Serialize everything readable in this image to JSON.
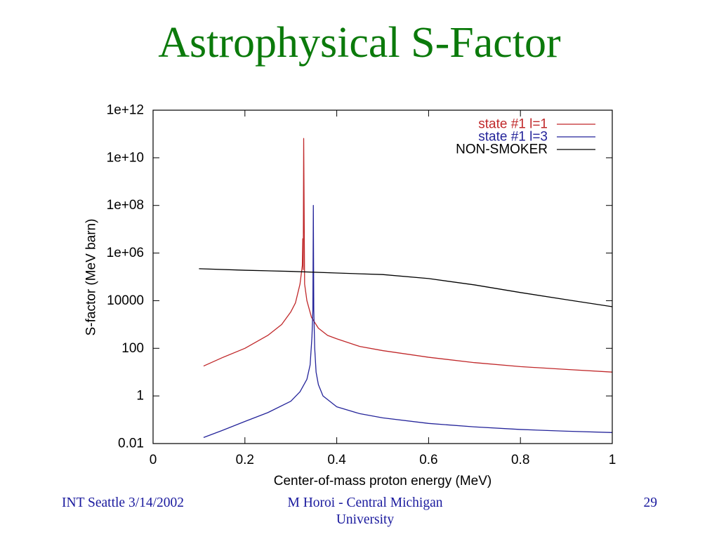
{
  "slide": {
    "title": "Astrophysical S-Factor",
    "title_color": "#0b7a0b",
    "footer": {
      "left": "INT Seattle 3/14/2002",
      "center_lines": [
        "M Horoi - Central Michigan",
        "University"
      ],
      "page_number": "29",
      "color": "#1a1a9e"
    }
  },
  "chart_data": {
    "type": "line",
    "xlabel": "Center-of-mass proton energy (MeV)",
    "ylabel": "S-factor (MeV barn)",
    "xlim": [
      0,
      1
    ],
    "ylim": [
      0.01,
      1000000000000.0
    ],
    "yscale": "log",
    "grid": false,
    "legend_position": "top-right",
    "x_ticks": [
      {
        "value": 0,
        "label": "0"
      },
      {
        "value": 0.2,
        "label": "0.2"
      },
      {
        "value": 0.4,
        "label": "0.4"
      },
      {
        "value": 0.6,
        "label": "0.6"
      },
      {
        "value": 0.8,
        "label": "0.8"
      },
      {
        "value": 1,
        "label": "1"
      }
    ],
    "y_ticks": [
      {
        "value": 0.01,
        "label": "0.01"
      },
      {
        "value": 1,
        "label": "1"
      },
      {
        "value": 100,
        "label": "100"
      },
      {
        "value": 10000,
        "label": "10000"
      },
      {
        "value": 1000000.0,
        "label": "1e+06"
      },
      {
        "value": 100000000.0,
        "label": "1e+08"
      },
      {
        "value": 10000000000.0,
        "label": "1e+10"
      },
      {
        "value": 1000000000000.0,
        "label": "1e+12"
      }
    ],
    "series": [
      {
        "name": "state #1 l=1",
        "color": "#c0282a",
        "x": [
          0.11,
          0.15,
          0.2,
          0.25,
          0.28,
          0.3,
          0.31,
          0.32,
          0.325,
          0.326,
          0.327,
          0.328,
          0.33,
          0.335,
          0.345,
          0.36,
          0.38,
          0.4,
          0.45,
          0.5,
          0.6,
          0.7,
          0.8,
          0.9,
          1.0
        ],
        "y": [
          18,
          40,
          100,
          350,
          1000,
          3400,
          8000,
          50000.0,
          300000.0,
          4000000.0,
          200000.0,
          65000000000.0,
          50000.0,
          10000.0,
          2000,
          700,
          350,
          250,
          120,
          80,
          42,
          25,
          17,
          13,
          10
        ]
      },
      {
        "name": "state #1 l=3",
        "color": "#24249a",
        "x": [
          0.11,
          0.15,
          0.2,
          0.25,
          0.3,
          0.32,
          0.335,
          0.342,
          0.346,
          0.348,
          0.349,
          0.35,
          0.352,
          0.355,
          0.36,
          0.37,
          0.4,
          0.45,
          0.5,
          0.6,
          0.7,
          0.8,
          0.9,
          1.0
        ],
        "y": [
          0.018,
          0.035,
          0.085,
          0.2,
          0.6,
          1.5,
          5,
          20,
          300,
          4000,
          100000000.0,
          4000,
          100,
          10,
          3,
          1,
          0.35,
          0.18,
          0.12,
          0.07,
          0.05,
          0.039,
          0.033,
          0.029
        ]
      },
      {
        "name": "NON-SMOKER",
        "color": "#000000",
        "x": [
          0.1,
          0.2,
          0.3,
          0.4,
          0.5,
          0.6,
          0.7,
          0.8,
          0.9,
          1.0
        ],
        "y": [
          220000.0,
          190000.0,
          170000.0,
          145000.0,
          125000.0,
          85000.0,
          46000.0,
          22000.0,
          11000.0,
          5600.0
        ]
      }
    ]
  }
}
